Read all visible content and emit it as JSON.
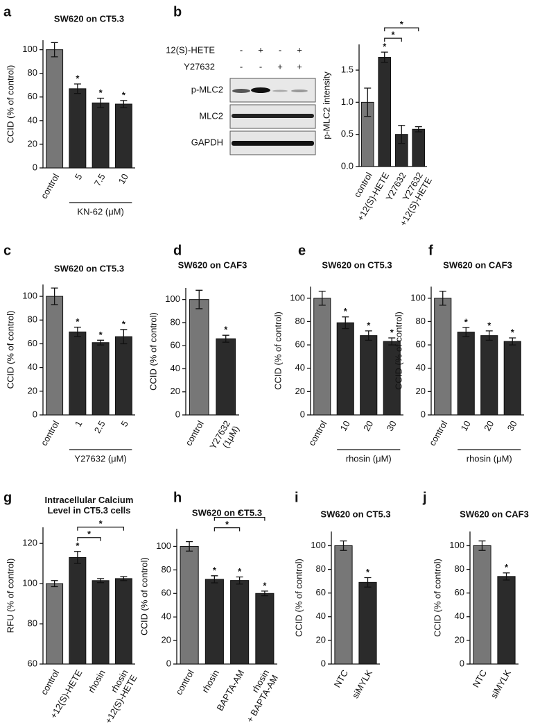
{
  "chart_data": [
    {
      "type": "bar",
      "panel": "a",
      "title": "SW620 on CT5.3",
      "y_label": "CCID (% of control)",
      "categories": [
        "control",
        "5",
        "7.5",
        "10"
      ],
      "values": [
        100,
        67,
        55,
        54
      ],
      "errors": [
        6,
        4,
        4,
        3
      ],
      "significance": [
        null,
        "*",
        "*",
        "*"
      ],
      "colors": [
        "#777777",
        "#2b2b2b",
        "#2b2b2b",
        "#2b2b2b"
      ],
      "group": {
        "label": "KN-62 (μM)",
        "from": 1,
        "to": 3
      },
      "ylim": [
        0,
        108
      ],
      "yticks": [
        0,
        20,
        40,
        60,
        80,
        100
      ]
    },
    {
      "type": "bar",
      "panel": "b",
      "y_label": "p-MLC2  intensity",
      "categories": [
        "control",
        "+12(S)-HETE",
        "Y27632",
        "Y27632\n+12(S)-HETE"
      ],
      "values": [
        1.0,
        1.7,
        0.5,
        0.58
      ],
      "errors": [
        0.22,
        0.08,
        0.14,
        0.04
      ],
      "significance": [
        null,
        "*",
        null,
        null
      ],
      "colors": [
        "#777777",
        "#2b2b2b",
        "#2b2b2b",
        "#2b2b2b"
      ],
      "brackets": [
        {
          "from": 1,
          "to": 2,
          "label": "*"
        },
        {
          "from": 1,
          "to": 3,
          "label": "*"
        }
      ],
      "ylim": [
        0,
        1.9
      ],
      "yticks": [
        {
          "value": 0,
          "label": "0.0"
        },
        0.5,
        {
          "value": 1,
          "label": "1.0"
        },
        1.5
      ]
    },
    {
      "type": "bar",
      "panel": "c",
      "title": "SW620 on CT5.3",
      "y_label": "CCID (% of control)",
      "categories": [
        "control",
        "1",
        "2.5",
        "5"
      ],
      "values": [
        100,
        70,
        61,
        66
      ],
      "errors": [
        7,
        4,
        2,
        6
      ],
      "significance": [
        null,
        "*",
        "*",
        "*"
      ],
      "colors": [
        "#777777",
        "#2b2b2b",
        "#2b2b2b",
        "#2b2b2b"
      ],
      "group": {
        "label": "Y27632 (μM)",
        "from": 1,
        "to": 3
      },
      "ylim": [
        0,
        110
      ],
      "yticks": [
        0,
        20,
        40,
        60,
        80,
        100
      ]
    },
    {
      "type": "bar",
      "panel": "d",
      "title": "SW620 on CAF3",
      "y_label": "CCID (% of control)",
      "categories": [
        "control",
        "Y27632\n(1μM)"
      ],
      "values": [
        100,
        66
      ],
      "errors": [
        8,
        3
      ],
      "significance": [
        null,
        "*"
      ],
      "colors": [
        "#777777",
        "#2b2b2b"
      ],
      "ylim": [
        0,
        110
      ],
      "yticks": [
        0,
        20,
        40,
        60,
        80,
        100
      ]
    },
    {
      "type": "bar",
      "panel": "e",
      "title": "SW620 on CT5.3",
      "y_label": "CCID (% of control)",
      "categories": [
        "control",
        "10",
        "20",
        "30"
      ],
      "values": [
        100,
        79,
        68,
        63
      ],
      "errors": [
        6,
        5,
        4,
        3
      ],
      "significance": [
        null,
        "*",
        "*",
        "*"
      ],
      "colors": [
        "#777777",
        "#2b2b2b",
        "#2b2b2b",
        "#2b2b2b"
      ],
      "group": {
        "label": "rhosin (μM)",
        "from": 1,
        "to": 3
      },
      "ylim": [
        0,
        110
      ],
      "yticks": [
        0,
        20,
        40,
        60,
        80,
        100
      ]
    },
    {
      "type": "bar",
      "panel": "f",
      "title": "SW620 on CAF3",
      "y_label": "CCID (% of control)",
      "categories": [
        "control",
        "10",
        "20",
        "30"
      ],
      "values": [
        100,
        71,
        68,
        63
      ],
      "errors": [
        6,
        4,
        4,
        3
      ],
      "significance": [
        null,
        "*",
        "*",
        "*"
      ],
      "colors": [
        "#777777",
        "#2b2b2b",
        "#2b2b2b",
        "#2b2b2b"
      ],
      "group": {
        "label": "rhosin (μM)",
        "from": 1,
        "to": 3
      },
      "ylim": [
        0,
        110
      ],
      "yticks": [
        0,
        20,
        40,
        60,
        80,
        100
      ]
    },
    {
      "type": "bar",
      "panel": "g",
      "title": "Intracellular Calcium\nLevel in CT5.3 cells",
      "y_label": "RFU (% of control)",
      "categories": [
        "control",
        "+12(S)-HETE",
        "rhosin",
        "rhosin\n+12(S)-HETE"
      ],
      "values": [
        100,
        113,
        101.5,
        102.5
      ],
      "errors": [
        1.5,
        3,
        1,
        1
      ],
      "significance": [
        null,
        "*",
        null,
        null
      ],
      "colors": [
        "#777777",
        "#2b2b2b",
        "#2b2b2b",
        "#2b2b2b"
      ],
      "brackets": [
        {
          "from": 1,
          "to": 2,
          "label": "*"
        },
        {
          "from": 1,
          "to": 3,
          "label": "*"
        }
      ],
      "ylim": [
        60,
        128
      ],
      "yticks": [
        60,
        80,
        100,
        120
      ]
    },
    {
      "type": "bar",
      "panel": "h",
      "title": "SW620 on CT5.3",
      "y_label": "CCID (% of control)",
      "categories": [
        "control",
        "rhosin",
        "BAPTA-AM",
        "rhosin\n+ BAPTA-AM"
      ],
      "values": [
        100,
        72,
        71,
        60
      ],
      "errors": [
        4,
        3,
        3,
        2
      ],
      "significance": [
        null,
        "*",
        "*",
        "*"
      ],
      "colors": [
        "#777777",
        "#2b2b2b",
        "#2b2b2b",
        "#2b2b2b"
      ],
      "brackets": [
        {
          "from": 1,
          "to": 2,
          "label": "*"
        },
        {
          "from": 1,
          "to": 3,
          "label": "*"
        }
      ],
      "ylim": [
        0,
        115
      ],
      "yticks": [
        0,
        20,
        40,
        60,
        80,
        100
      ]
    },
    {
      "type": "bar",
      "panel": "i",
      "title": "SW620 on CT5.3",
      "y_label": "CCID (% of control)",
      "categories": [
        "NTC",
        "siMYLK"
      ],
      "values": [
        100,
        69
      ],
      "errors": [
        4,
        4
      ],
      "significance": [
        null,
        "*"
      ],
      "colors": [
        "#777777",
        "#2b2b2b"
      ],
      "ylim": [
        0,
        112
      ],
      "yticks": [
        0,
        20,
        40,
        60,
        80,
        100
      ]
    },
    {
      "type": "bar",
      "panel": "j",
      "title": "SW620 on CAF3",
      "y_label": "CCID (% of control)",
      "categories": [
        "NTC",
        "siMYLK"
      ],
      "values": [
        100,
        74
      ],
      "errors": [
        4,
        3
      ],
      "significance": [
        null,
        "*"
      ],
      "colors": [
        "#777777",
        "#2b2b2b"
      ],
      "ylim": [
        0,
        112
      ],
      "yticks": [
        0,
        20,
        40,
        60,
        80,
        100
      ]
    }
  ],
  "blot": {
    "treatments": [
      {
        "name": "12(S)-HETE",
        "signs": [
          "-",
          "+",
          "-",
          "+"
        ]
      },
      {
        "name": "Y27632",
        "signs": [
          "-",
          "-",
          "+",
          "+"
        ]
      }
    ],
    "rows": [
      "p-MLC2",
      "MLC2",
      "GAPDH"
    ]
  }
}
